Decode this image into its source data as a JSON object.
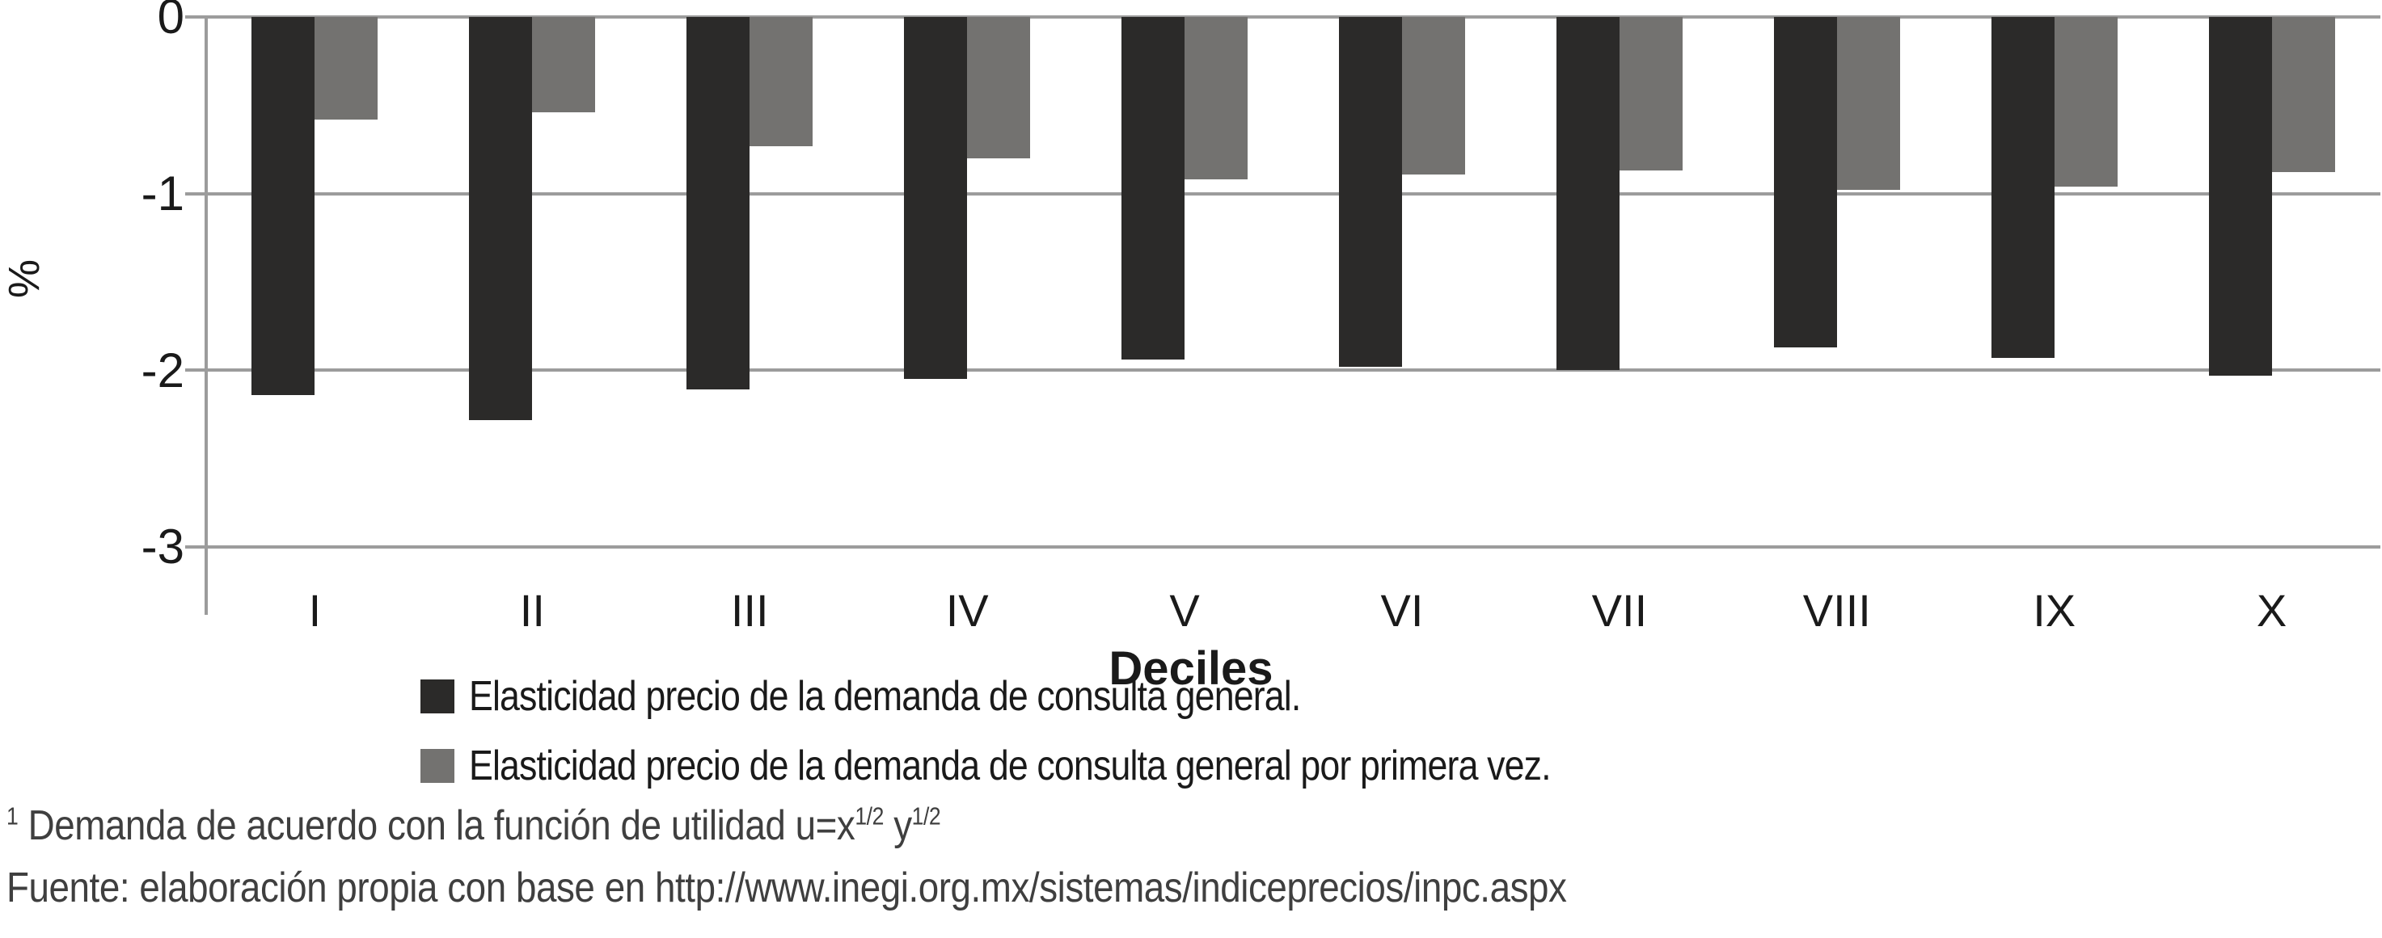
{
  "chart_data": {
    "type": "bar",
    "title": "",
    "categories": [
      "I",
      "II",
      "III",
      "IV",
      "V",
      "VI",
      "VII",
      "VIII",
      "IX",
      "X"
    ],
    "series": [
      {
        "name": "Elasticidad precio de la demanda de consulta general.",
        "color": "#2b2a29",
        "values": [
          -2.14,
          -2.28,
          -2.11,
          -2.05,
          -1.94,
          -1.98,
          -2.0,
          -1.87,
          -1.93,
          -2.03
        ]
      },
      {
        "name": "Elasticidad precio de la demanda de consulta general por primera vez.",
        "color": "#737270",
        "values": [
          -0.58,
          -0.54,
          -0.73,
          -0.8,
          -0.92,
          -0.89,
          -0.87,
          -0.98,
          -0.96,
          -0.88
        ]
      }
    ],
    "xlabel": "Deciles",
    "ylabel": "%",
    "ylim": [
      -3,
      0
    ],
    "yticks": [
      "0",
      "-1",
      "-2",
      "-3"
    ],
    "ytick_values": [
      0,
      -1,
      -2,
      -3
    ],
    "grid": true,
    "legend_position": "bottom",
    "gridline_color": "#9c9c9c"
  },
  "footnotes": {
    "line1_sup_marker": "1",
    "line1_text_a": " Demanda de acuerdo con la función de utilidad u=x",
    "line1_sup_a": "1/2",
    "line1_text_b": " y",
    "line1_sup_b": "1/2",
    "line2": "Fuente: elaboración propia con base en http://www.inegi.org.mx/sistemas/indiceprecios/inpc.aspx"
  }
}
